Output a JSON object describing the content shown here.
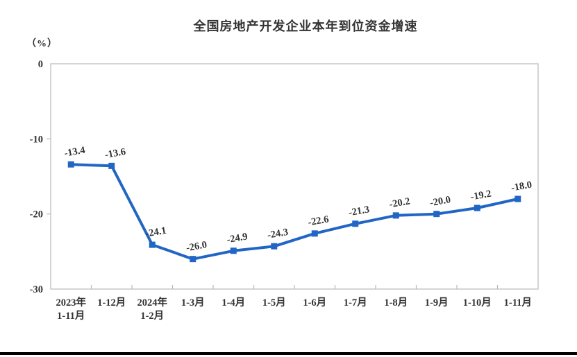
{
  "title": "全国房地产开发企业本年到位资金增速",
  "unit_label": "（%）",
  "colors": {
    "line": "#2166C4",
    "marker": "#2166C4",
    "axis_border": "#b9b9b9",
    "tick": "#b9b9b9",
    "text": "#333333",
    "divider": "#000000"
  },
  "chart_data": {
    "type": "line",
    "title": "全国房地产开发企业本年到位资金增速",
    "ylabel": "（%）",
    "xlabel": "",
    "ylim": [
      -30,
      0
    ],
    "y_ticks": [
      0,
      -10,
      -20,
      -30
    ],
    "y_tick_labels": [
      "0",
      "-10",
      "-20",
      "-30"
    ],
    "grid": false,
    "legend_position": "none",
    "categories": [
      "2023年1-11月",
      "1-12月",
      "2024年1-2月",
      "1-3月",
      "1-4月",
      "1-5月",
      "1-6月",
      "1-7月",
      "1-8月",
      "1-9月",
      "1-10月",
      "1-11月"
    ],
    "category_line1": [
      "2023年",
      "1-12月",
      "2024年",
      "1-3月",
      "1-4月",
      "1-5月",
      "1-6月",
      "1-7月",
      "1-8月",
      "1-9月",
      "1-10月",
      "1-11月"
    ],
    "category_line2": [
      "1-11月",
      "",
      "1-2月",
      "",
      "",
      "",
      "",
      "",
      "",
      "",
      "",
      ""
    ],
    "series": [
      {
        "name": "本年到位资金增速",
        "values": [
          -13.4,
          -13.6,
          -24.1,
          -26.0,
          -24.9,
          -24.3,
          -22.6,
          -21.3,
          -20.2,
          -20.0,
          -19.2,
          -18.0
        ],
        "value_labels": [
          "-13.4",
          "-13.6",
          "-24.1",
          "-26.0",
          "-24.9",
          "-24.3",
          "-22.6",
          "-21.3",
          "-20.2",
          "-20.0",
          "-19.2",
          "-18.0"
        ]
      }
    ]
  }
}
